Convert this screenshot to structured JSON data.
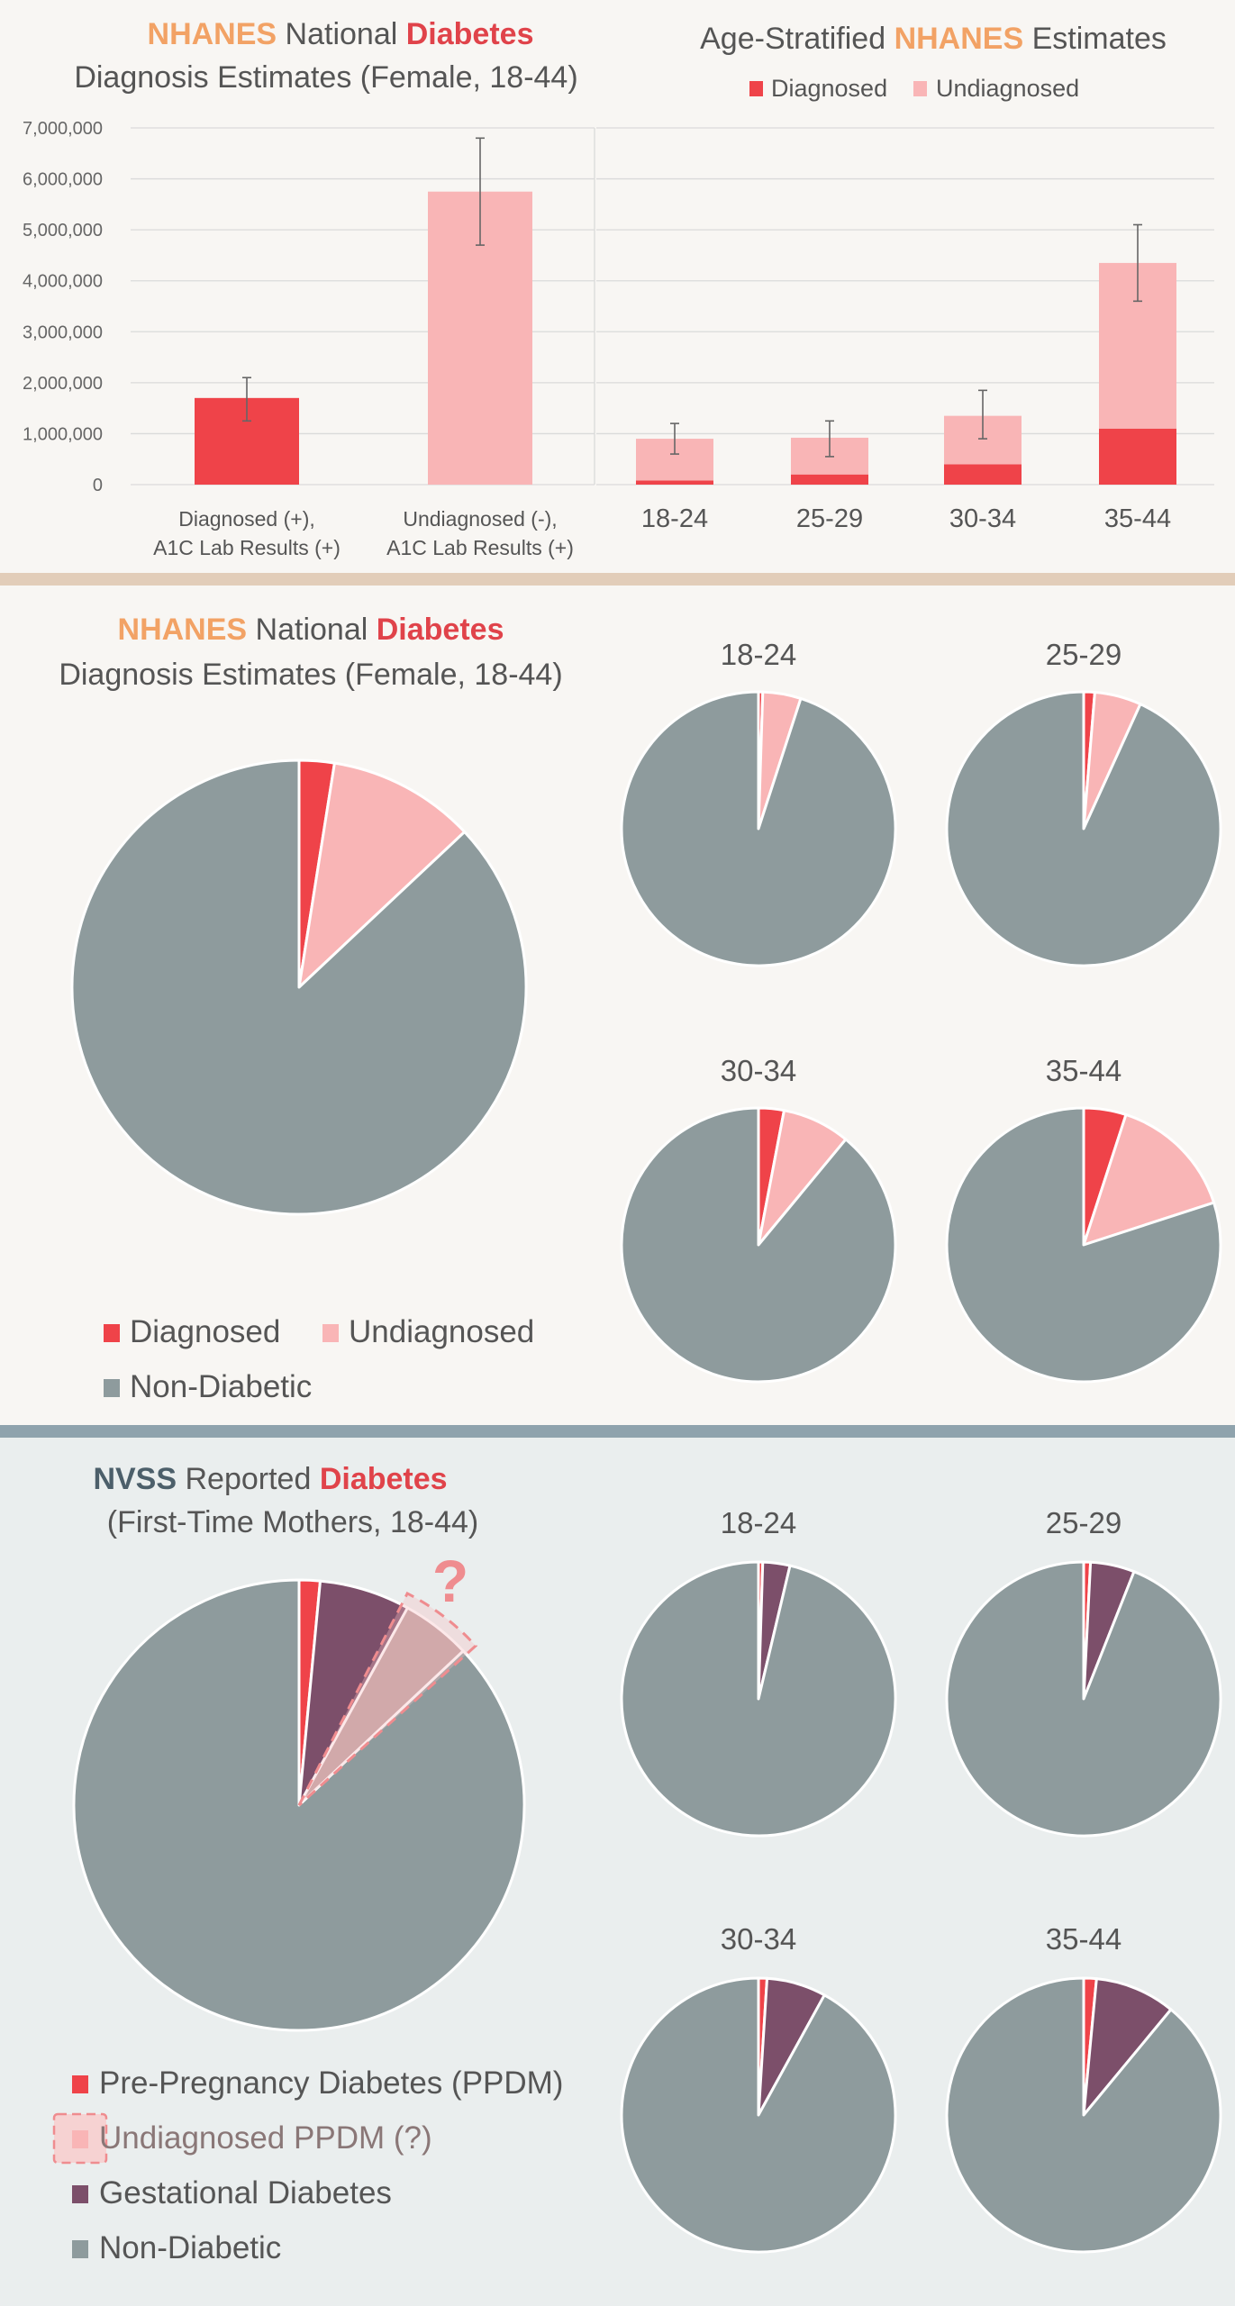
{
  "colors": {
    "diagnosed": "#ef4349",
    "undiagnosed": "#f9b5b6",
    "non_diabetic": "#8e9b9d",
    "gestational": "#7c4f6a",
    "pre_pregnancy": "#ef4349",
    "accent_orange": "#f2a265",
    "accent_red": "#e0434a",
    "accent_slate": "#4c5f6a"
  },
  "panel1": {
    "left_title": {
      "line1_highlight1": "NHANES",
      "line1_mid": "National",
      "line1_highlight2": "Diabetes",
      "line2": "Diagnosis Estimates (Female, 18-44)"
    },
    "right_title": {
      "pre": "Age-Stratified",
      "highlight": "NHANES",
      "post": "Estimates"
    },
    "legend": [
      "Diagnosed",
      "Undiagnosed"
    ],
    "y_ticks": [
      "7,000,000",
      "6,000,000",
      "5,000,000",
      "4,000,000",
      "3,000,000",
      "2,000,000",
      "1,000,000",
      "0"
    ]
  },
  "chart_data": [
    {
      "type": "bar",
      "categories": [
        "Diagnosed (+), A1C Lab Results (+)",
        "Undiagnosed (-), A1C Lab Results (+)"
      ],
      "category_lines": [
        [
          "Diagnosed (+),",
          "A1C Lab Results (+)"
        ],
        [
          "Undiagnosed (-),",
          "A1C Lab Results (+)"
        ]
      ],
      "values": [
        1700000,
        5750000
      ],
      "errors": [
        [
          1250000,
          2100000
        ],
        [
          4700000,
          6800000
        ]
      ],
      "ylim": [
        0,
        7000000
      ],
      "grid": true
    },
    {
      "type": "bar",
      "stacked": true,
      "categories": [
        "18-24",
        "25-29",
        "30-34",
        "35-44"
      ],
      "series": [
        {
          "name": "Diagnosed",
          "values": [
            80000,
            200000,
            400000,
            1100000
          ]
        },
        {
          "name": "Undiagnosed",
          "values": [
            820000,
            720000,
            950000,
            3250000
          ]
        }
      ],
      "errors": [
        [
          600000,
          1200000
        ],
        [
          550000,
          1250000
        ],
        [
          900000,
          1850000
        ],
        [
          3600000,
          5100000
        ]
      ],
      "ylim": [
        0,
        7000000
      ],
      "legend": "top",
      "grid": true
    },
    {
      "type": "pie",
      "labels": [
        "Diagnosed",
        "Undiagnosed",
        "Non-Diabetic"
      ],
      "values": [
        2.5,
        10.5,
        87
      ],
      "legend": "bottom-left"
    },
    {
      "type": "pie",
      "small_multiples": [
        {
          "title": "18-24",
          "labels": [
            "Diagnosed",
            "Undiagnosed",
            "Non-Diabetic"
          ],
          "values": [
            0.5,
            4.5,
            95
          ]
        },
        {
          "title": "25-29",
          "labels": [
            "Diagnosed",
            "Undiagnosed",
            "Non-Diabetic"
          ],
          "values": [
            1.3,
            5.5,
            93.2
          ]
        },
        {
          "title": "30-34",
          "labels": [
            "Diagnosed",
            "Undiagnosed",
            "Non-Diabetic"
          ],
          "values": [
            3,
            8,
            89
          ]
        },
        {
          "title": "35-44",
          "labels": [
            "Diagnosed",
            "Undiagnosed",
            "Non-Diabetic"
          ],
          "values": [
            5,
            15,
            80
          ]
        }
      ]
    },
    {
      "type": "pie",
      "labels": [
        "Pre-Pregnancy Diabetes (PPDM)",
        "Gestational Diabetes",
        "Undiagnosed PPDM (?)",
        "Non-Diabetic"
      ],
      "values": [
        1.5,
        6.5,
        5,
        87
      ],
      "annotation": "?",
      "legend": "bottom-left"
    },
    {
      "type": "pie",
      "small_multiples": [
        {
          "title": "18-24",
          "labels": [
            "Pre-Pregnancy Diabetes (PPDM)",
            "Gestational Diabetes",
            "Non-Diabetic"
          ],
          "values": [
            0.5,
            3.2,
            96.3
          ]
        },
        {
          "title": "25-29",
          "labels": [
            "Pre-Pregnancy Diabetes (PPDM)",
            "Gestational Diabetes",
            "Non-Diabetic"
          ],
          "values": [
            0.8,
            5.2,
            94
          ]
        },
        {
          "title": "30-34",
          "labels": [
            "Pre-Pregnancy Diabetes (PPDM)",
            "Gestational Diabetes",
            "Non-Diabetic"
          ],
          "values": [
            1,
            7,
            92
          ]
        },
        {
          "title": "35-44",
          "labels": [
            "Pre-Pregnancy Diabetes (PPDM)",
            "Gestational Diabetes",
            "Non-Diabetic"
          ],
          "values": [
            1.5,
            9.5,
            89
          ]
        }
      ]
    }
  ],
  "panel2": {
    "title": {
      "line1_highlight1": "NHANES",
      "line1_mid": "National",
      "line1_highlight2": "Diabetes",
      "line2": "Diagnosis Estimates (Female, 18-44)"
    },
    "legend": [
      "Diagnosed",
      "Undiagnosed",
      "Non-Diabetic"
    ]
  },
  "panel3": {
    "title": {
      "line1_highlight1": "NVSS",
      "line1_mid": "Reported",
      "line1_highlight2": "Diabetes",
      "line2": "(First-Time Mothers, 18-44)"
    },
    "legend": [
      "Pre-Pregnancy Diabetes (PPDM)",
      "Undiagnosed PPDM (?)",
      "Gestational Diabetes",
      "Non-Diabetic"
    ]
  }
}
